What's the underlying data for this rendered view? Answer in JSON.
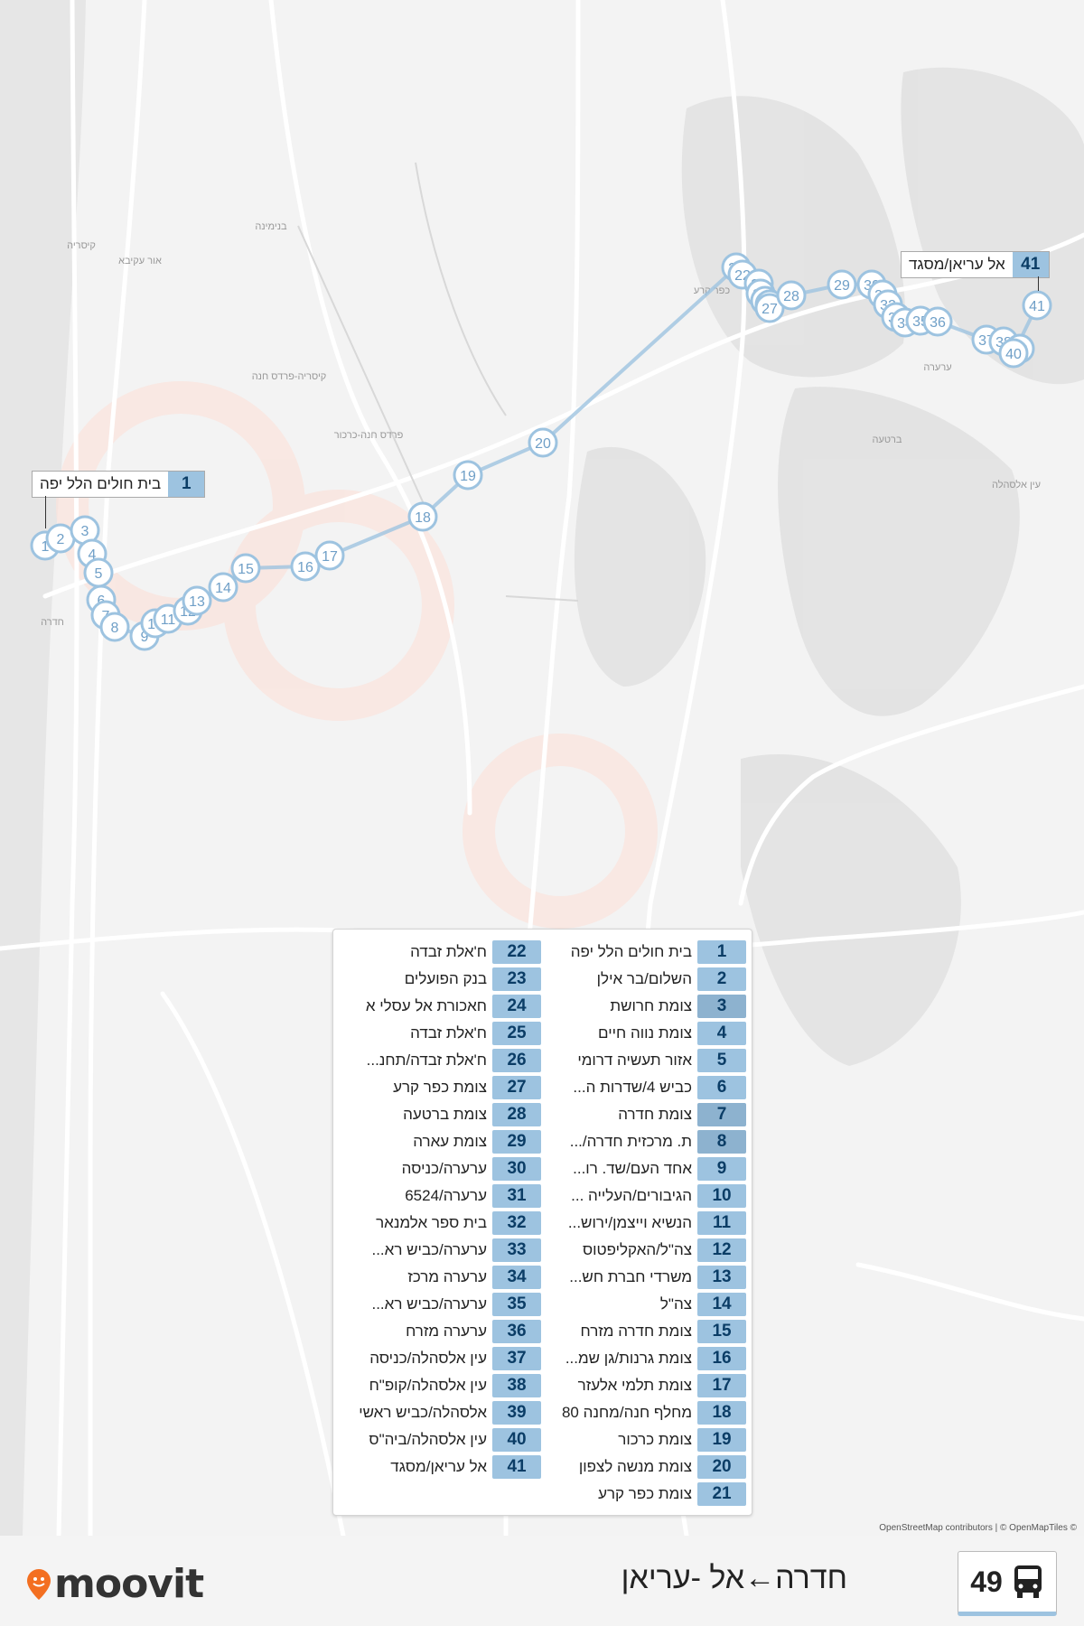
{
  "route": {
    "number": "49",
    "title": "חדרה←אל -עריאן",
    "accent_color": "#9dc3e0"
  },
  "brand": {
    "name": "moovit",
    "pin_color": "#f36f21"
  },
  "attribution": "OpenStreetMap contributors | © OpenMapTiles ©",
  "callouts": {
    "start": {
      "num": "1",
      "name": "בית חולים הלל יפה"
    },
    "end": {
      "num": "41",
      "name": "אל עריאן/מסגד"
    }
  },
  "map_labels": [
    "קיסריה",
    "אור עקיבא",
    "בנימינה",
    "קיסריה-פרדס חנה",
    "פרדס חנה-כרכור",
    "חדרה",
    "כפר קרע",
    "ערערה",
    "ברטעה",
    "עין אלסהלה"
  ],
  "stops": [
    {
      "num": "1",
      "name": "בית חולים הלל יפה"
    },
    {
      "num": "2",
      "name": "השלום/בר אילן"
    },
    {
      "num": "3",
      "name": "צומת חרושת"
    },
    {
      "num": "4",
      "name": "צומת נווה חיים"
    },
    {
      "num": "5",
      "name": "אזור תעשיה דרומי"
    },
    {
      "num": "6",
      "name": "כביש 4/שדרות ה..."
    },
    {
      "num": "7",
      "name": "צומת חדרה"
    },
    {
      "num": "8",
      "name": "ת. מרכזית חדרה/..."
    },
    {
      "num": "9",
      "name": "אחד העם/שד. רו..."
    },
    {
      "num": "10",
      "name": "הגיבורים/העלייה ..."
    },
    {
      "num": "11",
      "name": "הנשיא וייצמן/ירוש..."
    },
    {
      "num": "12",
      "name": "צה\"ל/האקליפטוס"
    },
    {
      "num": "13",
      "name": "משרדי חברת חש..."
    },
    {
      "num": "14",
      "name": "צה\"ל"
    },
    {
      "num": "15",
      "name": "צומת חדרה מזרח"
    },
    {
      "num": "16",
      "name": "צומת גרנות/גן שמ..."
    },
    {
      "num": "17",
      "name": "צומת תלמי אלעזר"
    },
    {
      "num": "18",
      "name": "מחלף חנה/מחנה 80"
    },
    {
      "num": "19",
      "name": "צומת כרכור"
    },
    {
      "num": "20",
      "name": "צומת מנשה לצפון"
    },
    {
      "num": "21",
      "name": "צומת כפר קרע"
    },
    {
      "num": "22",
      "name": "ח'אלת זבדה"
    },
    {
      "num": "23",
      "name": "בנק הפועלים"
    },
    {
      "num": "24",
      "name": "חאכורת אל עסלי א"
    },
    {
      "num": "25",
      "name": "ח'אלת זבדה"
    },
    {
      "num": "26",
      "name": "ח'אלת זבדה/תחנ..."
    },
    {
      "num": "27",
      "name": "צומת כפר קרע"
    },
    {
      "num": "28",
      "name": "צומת ברטעה"
    },
    {
      "num": "29",
      "name": "צומת עארה"
    },
    {
      "num": "30",
      "name": "ערערה/כניסה"
    },
    {
      "num": "31",
      "name": "ערערה/6524"
    },
    {
      "num": "32",
      "name": "בית ספר אלמנאר"
    },
    {
      "num": "33",
      "name": "ערערה/כביש רא..."
    },
    {
      "num": "34",
      "name": "ערערה מרכז"
    },
    {
      "num": "35",
      "name": "ערערה/כביש רא..."
    },
    {
      "num": "36",
      "name": "ערערה מזרח"
    },
    {
      "num": "37",
      "name": "עין אלסהלה/כניסה"
    },
    {
      "num": "38",
      "name": "עין אלסהלה/קופ\"ח"
    },
    {
      "num": "39",
      "name": "אלסהלה/כביש ראשי"
    },
    {
      "num": "40",
      "name": "עין אלסהלה/ביה\"ס"
    },
    {
      "num": "41",
      "name": "אל עריאן/מסגד"
    }
  ]
}
